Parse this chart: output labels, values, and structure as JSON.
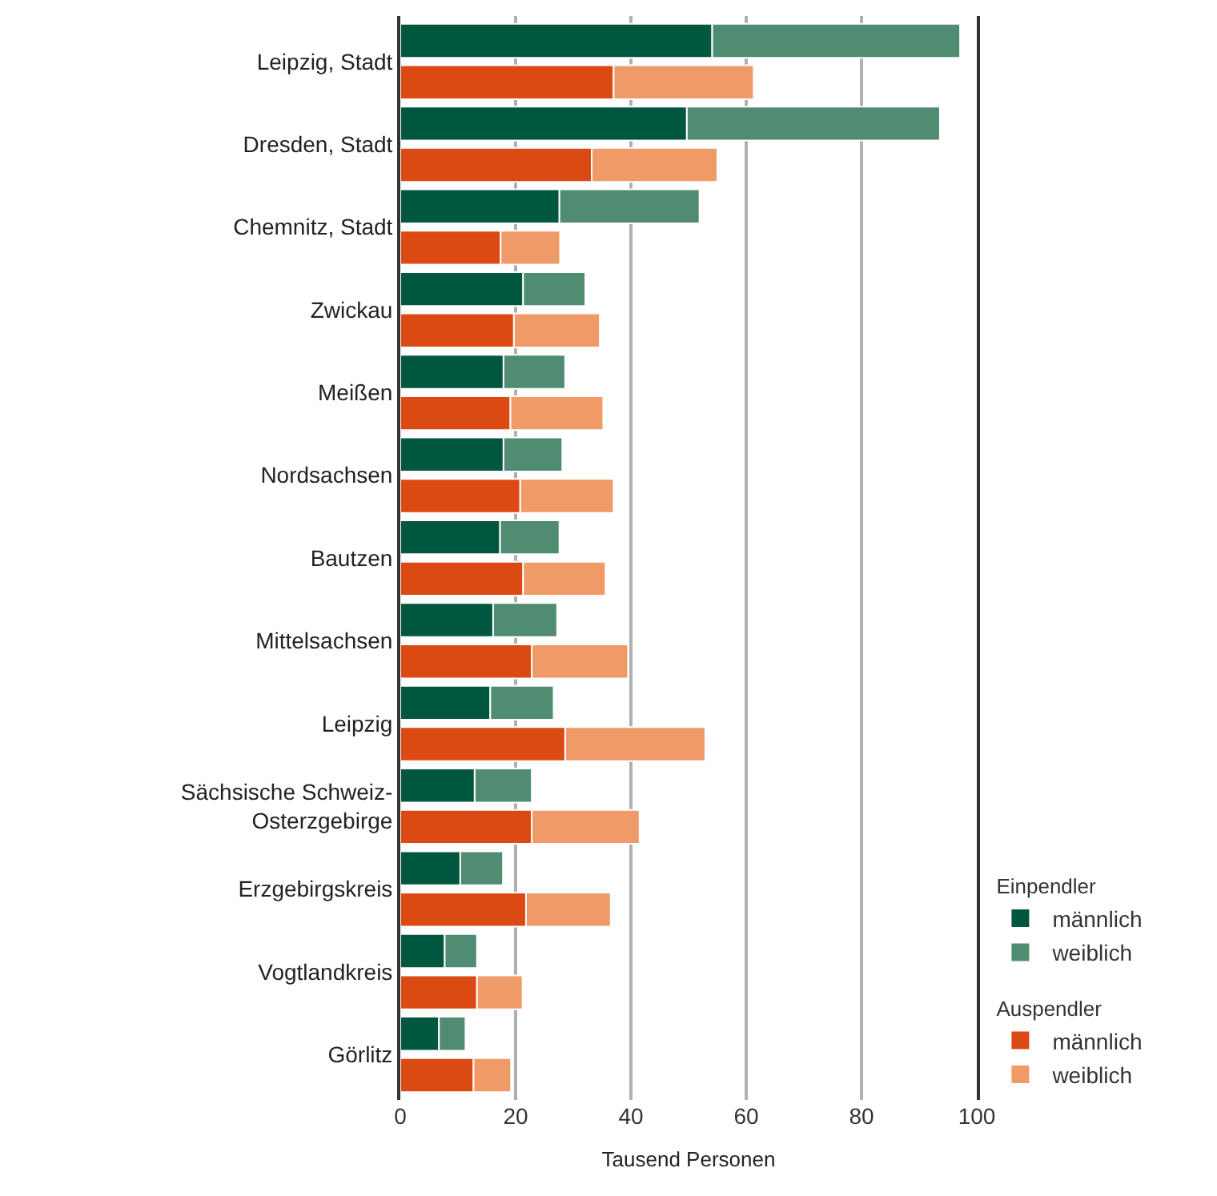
{
  "chart_data": {
    "type": "bar",
    "orientation": "horizontal",
    "stacked": true,
    "categories": [
      "Leipzig, Stadt",
      null,
      "Dresden, Stadt",
      null,
      "Chemnitz, Stadt",
      null,
      "Zwickau",
      null,
      "Meißen",
      null,
      "Nordsachsen",
      null,
      "Bautzen",
      null,
      "Mittelsachsen",
      null,
      "Leipzig",
      null,
      "Sächsische Schweiz-Osterzgebirge",
      null,
      "Erzgebirgskreis",
      null,
      "Vogtlandkreis",
      null,
      "Görlitz",
      null
    ],
    "series": [
      {
        "name": "männlich",
        "color": "#00573f",
        "values": [
          54.1,
          null,
          49.7,
          null,
          27.6,
          null,
          21.3,
          null,
          17.9,
          null,
          17.9,
          null,
          17.3,
          null,
          16.1,
          null,
          15.6,
          null,
          12.9,
          null,
          10.4,
          null,
          7.7,
          null,
          6.7,
          null
        ]
      },
      {
        "name": "weiblich",
        "color": "#4f8c72",
        "values": [
          43.0,
          null,
          43.9,
          null,
          24.3,
          null,
          10.8,
          null,
          10.7,
          null,
          10.2,
          null,
          10.3,
          null,
          11.1,
          null,
          11.0,
          null,
          9.9,
          null,
          7.4,
          null,
          5.6,
          null,
          4.6,
          null
        ]
      },
      {
        "name": "männlich",
        "color": "#dc4a14",
        "values": [
          null,
          37.0,
          null,
          33.2,
          null,
          17.4,
          null,
          19.7,
          null,
          19.1,
          null,
          20.8,
          null,
          21.3,
          null,
          22.8,
          null,
          28.6,
          null,
          22.8,
          null,
          21.8,
          null,
          13.3,
          null,
          12.7
        ]
      },
      {
        "name": "weiblich",
        "color": "#f09a68",
        "values": [
          null,
          24.3,
          null,
          21.8,
          null,
          10.3,
          null,
          14.9,
          null,
          16.1,
          null,
          16.2,
          null,
          14.3,
          null,
          16.7,
          null,
          24.3,
          null,
          18.7,
          null,
          14.7,
          null,
          7.9,
          null,
          6.5
        ]
      }
    ],
    "annotations": [
      "Einpendler",
      "Auspendler"
    ],
    "xlabel": "Tausend Personen",
    "xlim": [
      0,
      100
    ],
    "xticks": [
      0,
      20,
      40,
      60,
      80,
      100
    ],
    "grid": "x",
    "legend": "bottom right"
  }
}
